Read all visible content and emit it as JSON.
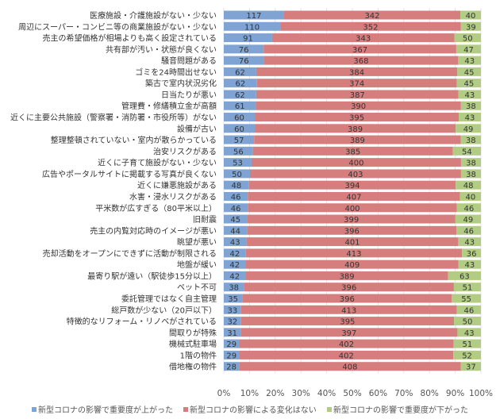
{
  "chart_data": {
    "type": "bar",
    "orientation": "horizontal",
    "stacked": "percent",
    "categories": [
      "医療施設・介護施設がない・少ない",
      "周辺にスーパー・コンビニ等の商業施設がない・少ない",
      "売主の希望価格が相場よりも高く設定されている",
      "共有部が汚い・状態が良くない",
      "騒音問題がある",
      "ゴミを24時間出せない",
      "築古で室内状況劣化",
      "日当たりが悪い",
      "管理費・修繕積立金が高額",
      "近くに主要公共施設（警察署・消防署・市役所等）がない",
      "設備が古い",
      "整理整頓されていない・室内が散らかっている",
      "治安リスクがある",
      "近くに子育て施設がない・少ない",
      "広告やポータルサイトに掲載する写真が良くない",
      "近くに嫌悪施設がある",
      "水害・浸水リスクがある",
      "平米数が広すぎる（80平米以上）",
      "旧耐震",
      "売主の内覧対応時のイメージが悪い",
      "眺望が悪い",
      "売却活動をオープンにできずに活動が制限される",
      "地盤が緩い",
      "最寄り駅が遠い（駅徒歩15分以上）",
      "ペット不可",
      "委託管理ではなく自主管理",
      "総戸数が少ない（20戸以下）",
      "特徴的なリフォーム・リノベがされている",
      "間取りが特殊",
      "機械式駐車場",
      "1階の物件",
      "借地権の物件"
    ],
    "series": [
      {
        "name": "新型コロナの影響で重要度が上がった",
        "color": "#7fa4d3",
        "values": [
          117,
          110,
          91,
          76,
          76,
          62,
          62,
          62,
          61,
          60,
          60,
          57,
          56,
          53,
          50,
          48,
          46,
          46,
          45,
          44,
          43,
          42,
          42,
          42,
          38,
          35,
          33,
          32,
          31,
          29,
          29,
          28
        ]
      },
      {
        "name": "新型コロナの影響による変化はない",
        "color": "#d67e7e",
        "values": [
          342,
          352,
          343,
          367,
          368,
          384,
          374,
          387,
          390,
          395,
          389,
          389,
          385,
          400,
          403,
          394,
          407,
          400,
          399,
          396,
          401,
          413,
          409,
          389,
          396,
          396,
          413,
          395,
          397,
          402,
          402,
          408
        ]
      },
      {
        "name": "新型コロナの影響で重要度が下がった",
        "color": "#b2cd83",
        "values": [
          40,
          39,
          50,
          47,
          43,
          45,
          45,
          43,
          38,
          43,
          49,
          38,
          54,
          38,
          38,
          48,
          40,
          46,
          49,
          46,
          43,
          36,
          43,
          63,
          51,
          55,
          46,
          50,
          43,
          51,
          52,
          37
        ]
      }
    ],
    "xticks": [
      "0%",
      "10%",
      "20%",
      "30%",
      "40%",
      "50%",
      "60%",
      "70%",
      "80%",
      "90%",
      "100%"
    ],
    "xlim": [
      0,
      100
    ],
    "grid": true,
    "legend": "bottom"
  }
}
